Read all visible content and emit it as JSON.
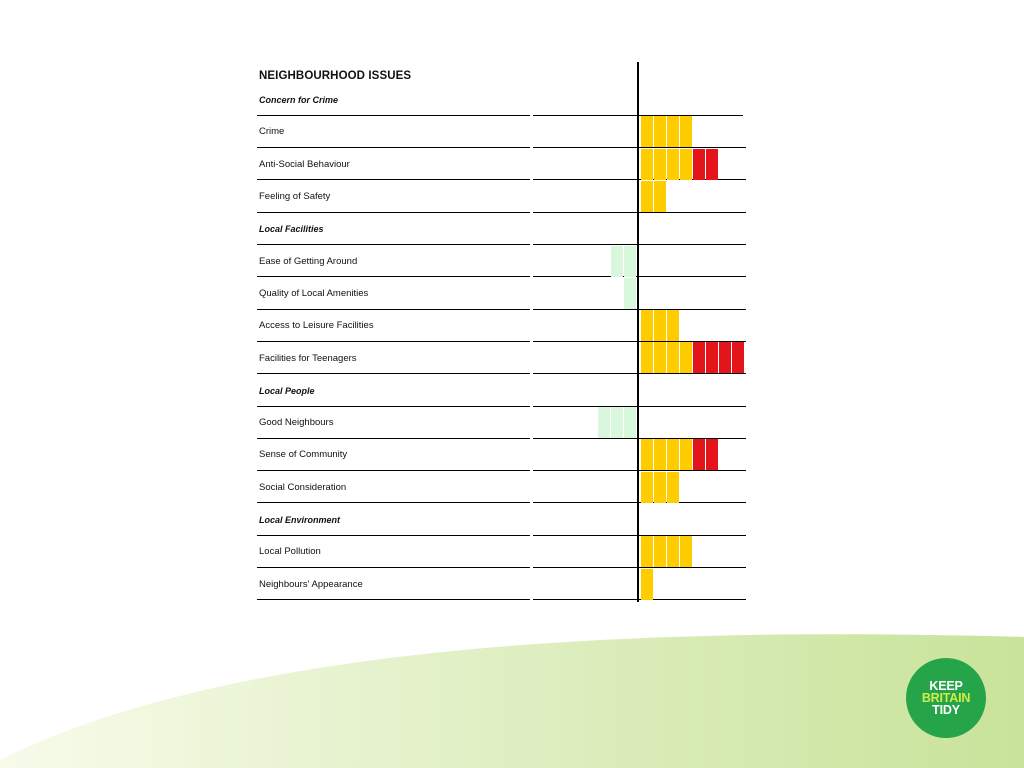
{
  "colors": {
    "positive": "#d9f7dd",
    "moderate": "#ffcc00",
    "severe": "#e3151b",
    "logo_bg": "#25a44a",
    "logo_accent": "#d3eb46",
    "wave_light": "#f7fbea",
    "wave_dark": "#c8e39a"
  },
  "logo": {
    "icon": "keep-britain-tidy-logo",
    "line1": "KEEP",
    "line2": "BRITAIN",
    "line3": "TIDY"
  },
  "chart_data": {
    "type": "bar",
    "title": "NEIGHBOURHOOD ISSUES",
    "orientation": "horizontal",
    "units": "blocks",
    "note": "Positive values extend right of the axis (yellow, then red beyond 4); negative values extend left (light green).",
    "rows": [
      {
        "kind": "section",
        "label": "Concern for Crime"
      },
      {
        "kind": "item",
        "label": "Crime",
        "value": 4
      },
      {
        "kind": "item",
        "label": "Anti-Social Behaviour",
        "value": 6
      },
      {
        "kind": "item",
        "label": "Feeling of Safety",
        "value": 2
      },
      {
        "kind": "section",
        "label": "Local Facilities"
      },
      {
        "kind": "item",
        "label": "Ease of Getting Around",
        "value": -2
      },
      {
        "kind": "item",
        "label": "Quality of Local Amenities",
        "value": -1
      },
      {
        "kind": "item",
        "label": "Access to Leisure Facilities",
        "value": 3
      },
      {
        "kind": "item",
        "label": "Facilities for Teenagers",
        "value": 8
      },
      {
        "kind": "section",
        "label": "Local People"
      },
      {
        "kind": "item",
        "label": "Good Neighbours",
        "value": -3
      },
      {
        "kind": "item",
        "label": "Sense of Community",
        "value": 6
      },
      {
        "kind": "item",
        "label": "Social Consideration",
        "value": 3
      },
      {
        "kind": "section",
        "label": "Local Environment"
      },
      {
        "kind": "item",
        "label": "Local Pollution",
        "value": 4
      },
      {
        "kind": "item",
        "label": "Neighbours' Appearance",
        "value": 1
      }
    ]
  }
}
